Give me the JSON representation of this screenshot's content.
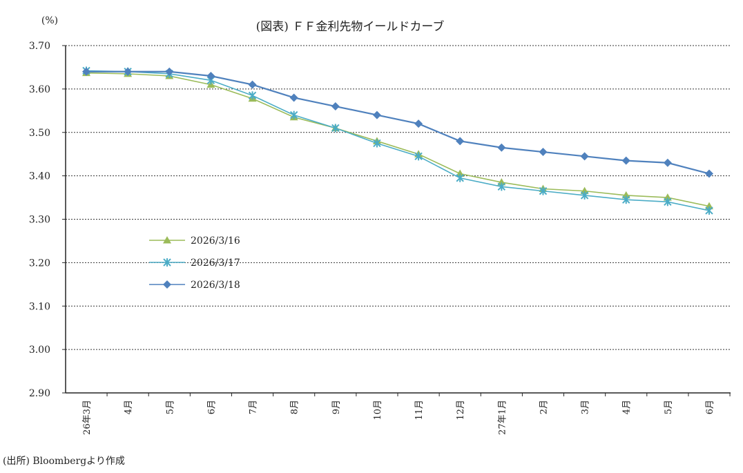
{
  "chart_data": {
    "type": "line",
    "title": "(図表) ＦＦ金利先物イールドカーブ",
    "ylabel": "(%)",
    "xlabel": "",
    "ylim": [
      2.9,
      3.7
    ],
    "yticks": [
      "3.70",
      "3.60",
      "3.50",
      "3.40",
      "3.30",
      "3.20",
      "3.10",
      "3.00",
      "2.90"
    ],
    "ytick_values": [
      3.7,
      3.6,
      3.5,
      3.4,
      3.3,
      3.2,
      3.1,
      3.0,
      2.9
    ],
    "grid": "horizontal-dashed",
    "legend_position": "left-middle",
    "categories": [
      "26年3月",
      "4月",
      "5月",
      "6月",
      "7月",
      "8月",
      "9月",
      "10月",
      "11月",
      "12月",
      "27年1月",
      "2月",
      "3月",
      "4月",
      "5月",
      "6月"
    ],
    "series": [
      {
        "name": "2026/3/16",
        "color": "#9bbb59",
        "marker": "triangle",
        "values": [
          3.637,
          3.635,
          3.63,
          3.61,
          3.578,
          3.535,
          3.51,
          3.48,
          3.45,
          3.405,
          3.385,
          3.37,
          3.365,
          3.355,
          3.35,
          3.33
        ]
      },
      {
        "name": "2026/3/17",
        "color": "#4bacc6",
        "marker": "star",
        "values": [
          3.642,
          3.64,
          3.635,
          3.62,
          3.585,
          3.54,
          3.51,
          3.475,
          3.445,
          3.395,
          3.375,
          3.365,
          3.355,
          3.345,
          3.34,
          3.32
        ]
      },
      {
        "name": "2026/3/18",
        "color": "#4f81bd",
        "marker": "diamond",
        "values": [
          3.64,
          3.64,
          3.64,
          3.63,
          3.61,
          3.58,
          3.56,
          3.54,
          3.52,
          3.48,
          3.465,
          3.455,
          3.445,
          3.435,
          3.43,
          3.405
        ]
      }
    ]
  },
  "source_note": "(出所) Bloombergより作成"
}
